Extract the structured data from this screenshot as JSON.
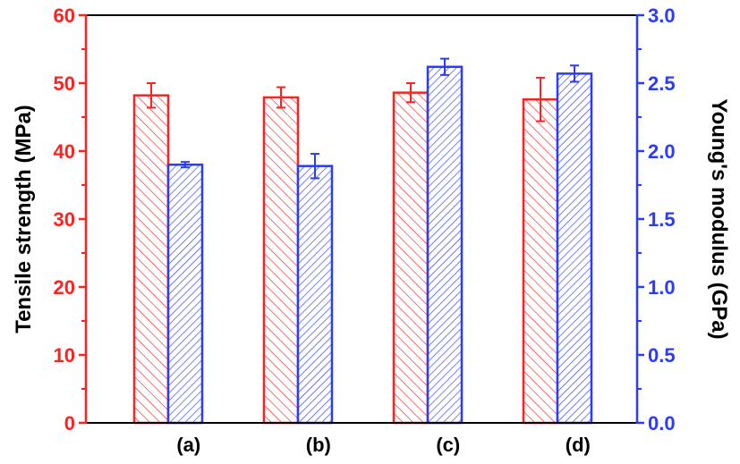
{
  "chart_data": {
    "type": "bar",
    "categories": [
      "(a)",
      "(b)",
      "(c)",
      "(d)"
    ],
    "series": [
      {
        "axis": "left",
        "color": "#ff2020",
        "pattern": "backslash-hatch",
        "values": [
          48.2,
          47.9,
          48.6,
          47.6
        ],
        "errors": [
          1.8,
          1.5,
          1.4,
          3.2
        ]
      },
      {
        "axis": "right",
        "color": "#2a3bff",
        "pattern": "slash-hatch",
        "values": [
          1.9,
          1.89,
          2.62,
          2.57
        ],
        "errors": [
          0.02,
          0.09,
          0.06,
          0.06
        ]
      }
    ],
    "y_left": {
      "label": "Tensile strength (MPa)",
      "range": [
        0,
        60
      ],
      "ticks": [
        "0",
        "10",
        "20",
        "30",
        "40",
        "50",
        "60"
      ]
    },
    "y_right": {
      "label": "Young's modulus (GPa)",
      "range": [
        0,
        3.0
      ],
      "ticks": [
        "0.0",
        "0.5",
        "1.0",
        "1.5",
        "2.0",
        "2.5",
        "3.0"
      ]
    },
    "grid": false,
    "legend": "none"
  }
}
